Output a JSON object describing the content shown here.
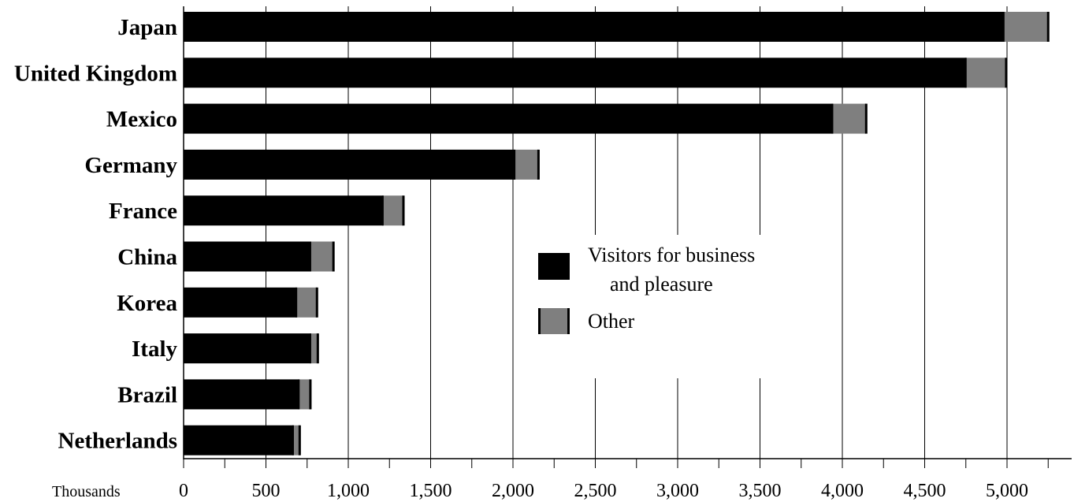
{
  "chart_data": {
    "type": "bar",
    "orientation": "horizontal",
    "stacked": true,
    "categories": [
      "Japan",
      "United Kingdom",
      "Mexico",
      "Germany",
      "France",
      "China",
      "Korea",
      "Italy",
      "Brazil",
      "Netherlands"
    ],
    "series": [
      {
        "name": "Visitors for business and pleasure",
        "legend_lines": [
          "Visitors for business",
          "and pleasure"
        ],
        "color": "#000000",
        "values": [
          4980,
          4750,
          3940,
          2010,
          1210,
          770,
          685,
          770,
          700,
          665
        ]
      },
      {
        "name": "Other",
        "legend_lines": [
          "Other"
        ],
        "color": "#7f7f7f",
        "values": [
          270,
          245,
          205,
          145,
          125,
          140,
          125,
          45,
          70,
          40
        ]
      }
    ],
    "xlabel": "Thousands",
    "ylabel": "",
    "title": "",
    "xlim": [
      0,
      5250
    ],
    "xticks": [
      0,
      500,
      1000,
      1500,
      2000,
      2500,
      3000,
      3500,
      4000,
      4500,
      5000
    ],
    "xtick_labels": [
      "0",
      "500",
      "1,000",
      "1,500",
      "2,000",
      "2,500",
      "3,000",
      "3,500",
      "4,000",
      "4,500",
      "5,000"
    ],
    "grid": "vertical",
    "legend_position": "center"
  }
}
